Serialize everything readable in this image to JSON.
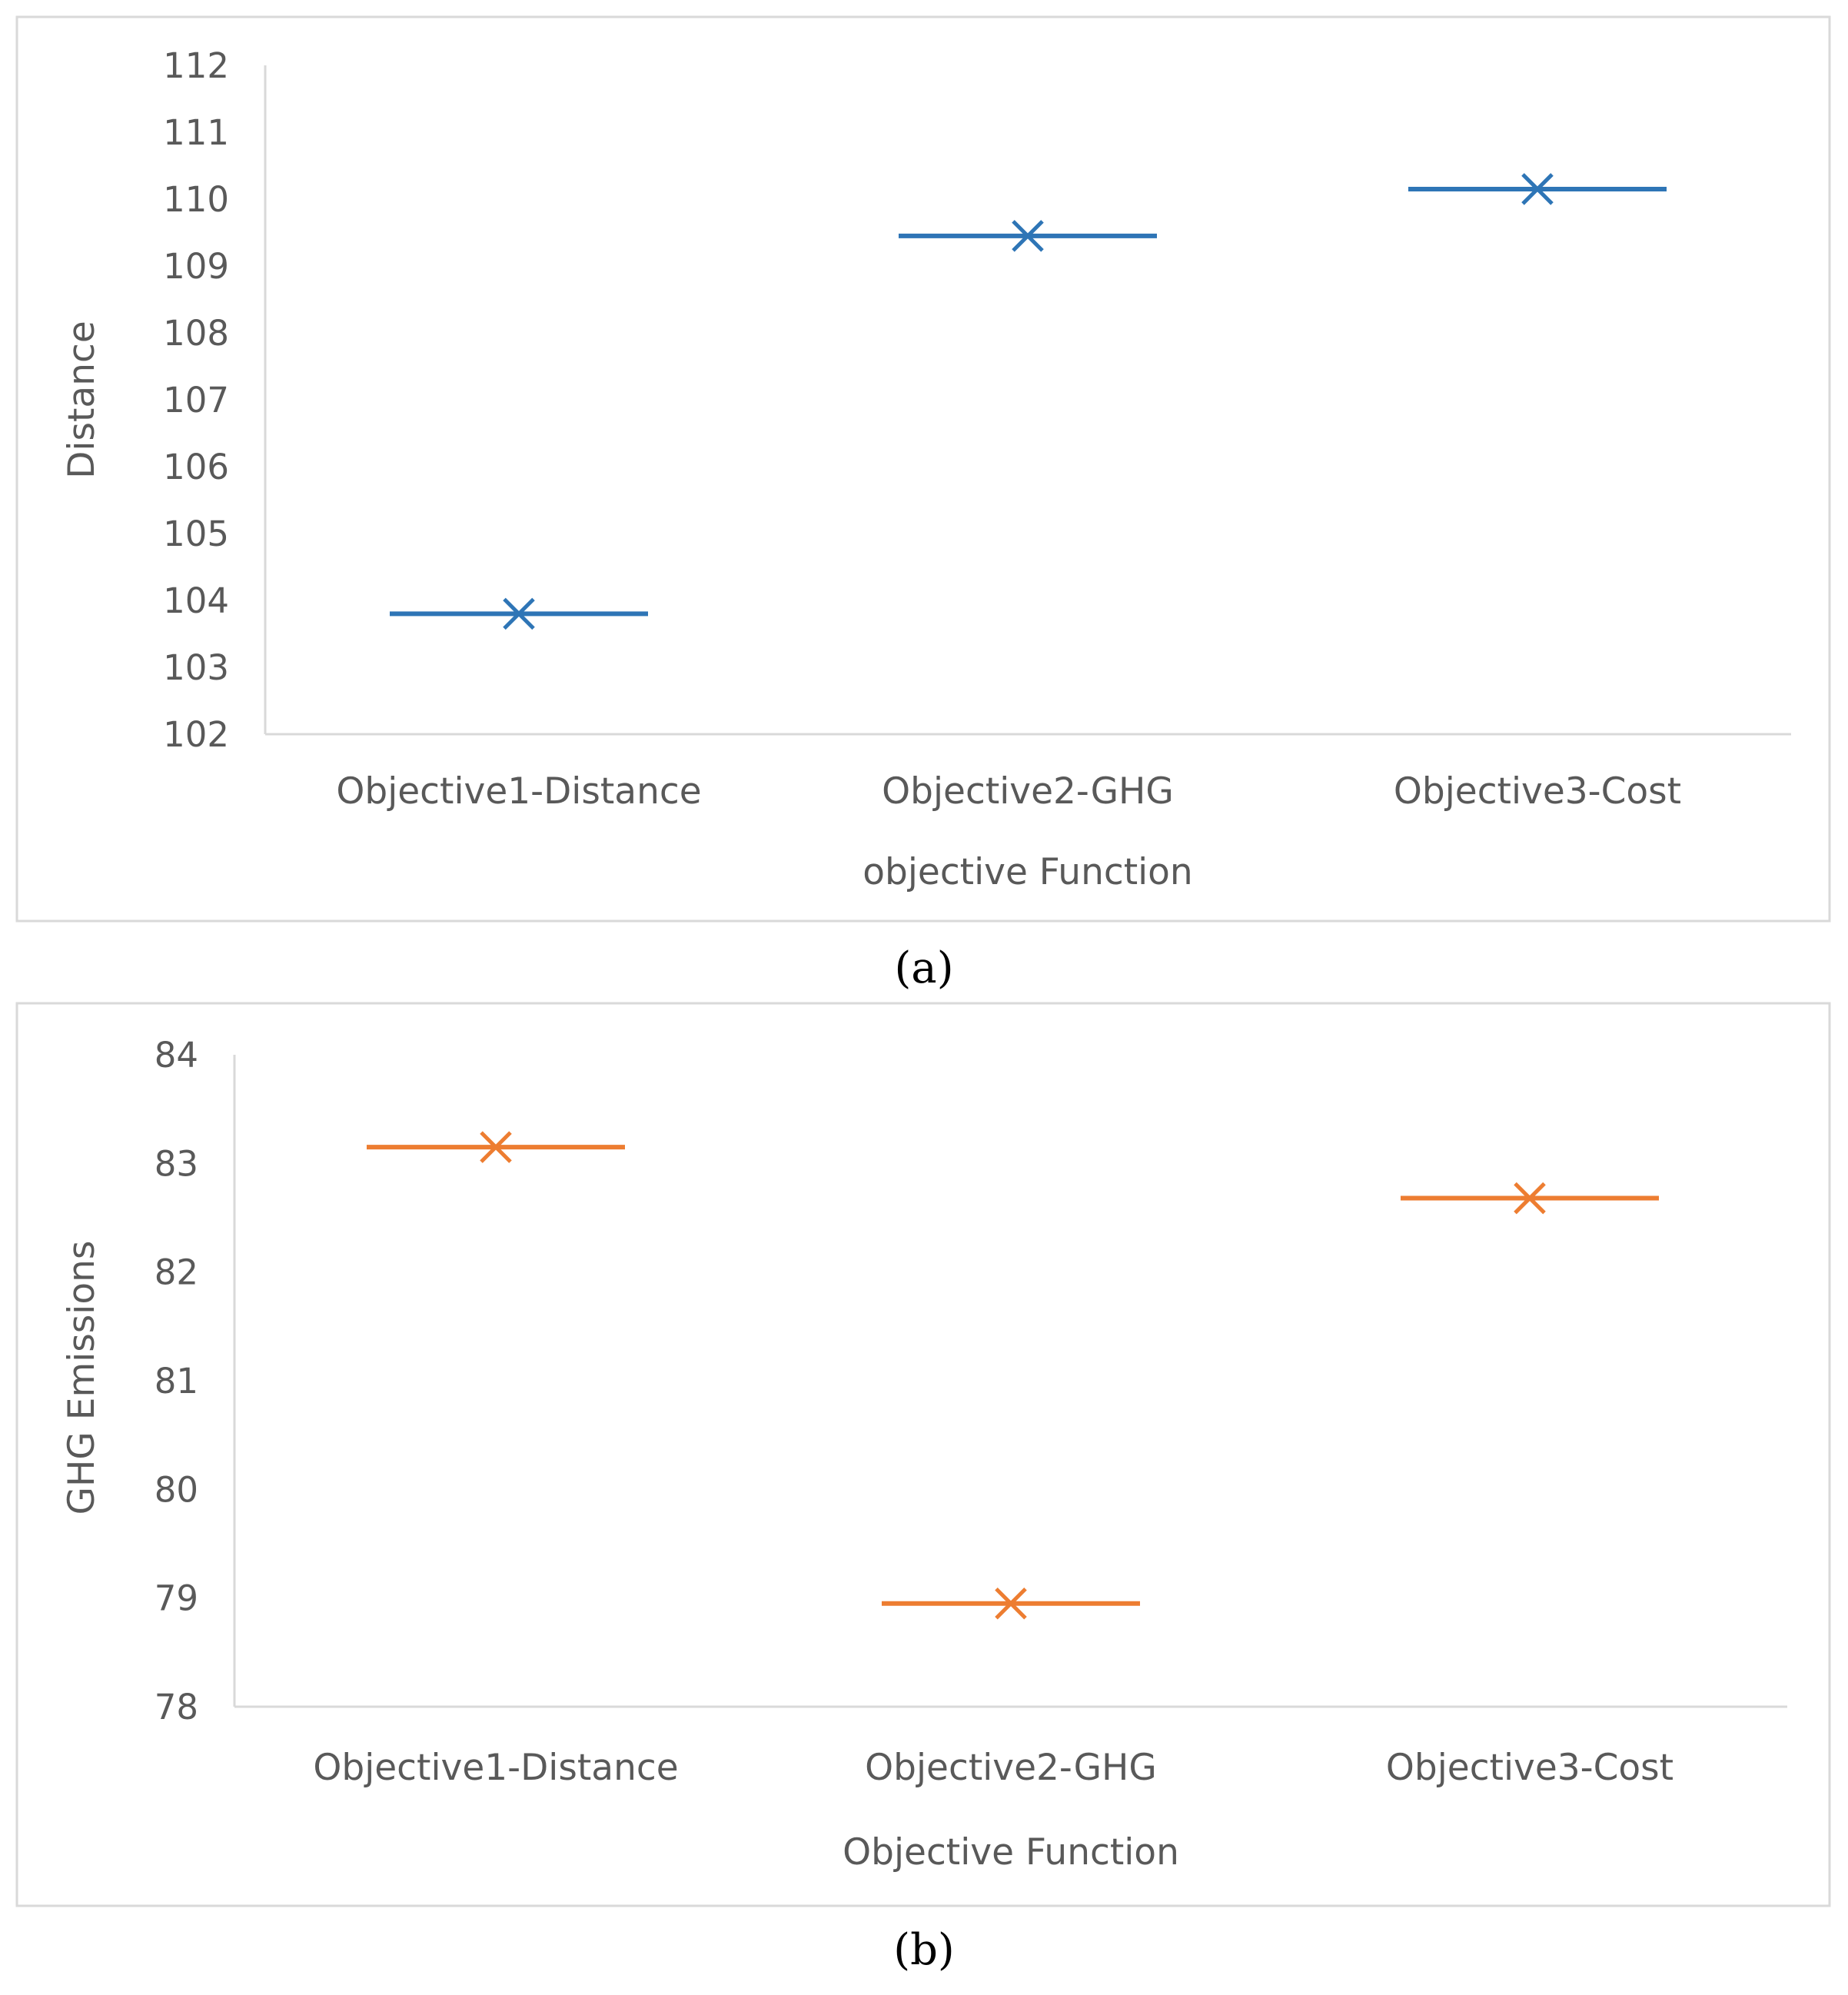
{
  "chart_data": [
    {
      "type": "line",
      "panel_label": "(a)",
      "title": "",
      "xlabel": "objective Function",
      "ylabel": "Distance",
      "categories": [
        "Objective1-Distance",
        "Objective2-GHG",
        "Objective3-Cost"
      ],
      "ylim": [
        102,
        112
      ],
      "yticks": [
        102,
        103,
        104,
        105,
        106,
        107,
        108,
        109,
        110,
        111,
        112
      ],
      "series": [
        {
          "name": "Distance",
          "values": [
            103.8,
            109.45,
            110.15
          ],
          "marker": "x",
          "color": "#2E75B6"
        }
      ],
      "grid": false,
      "legend": "none"
    },
    {
      "type": "line",
      "panel_label": "(b)",
      "title": "",
      "xlabel": "Objective Function",
      "ylabel": "GHG Emissions",
      "categories": [
        "Objective1-Distance",
        "Objective2-GHG",
        "Objective3-Cost"
      ],
      "ylim": [
        78,
        84
      ],
      "yticks": [
        78,
        79,
        80,
        81,
        82,
        83,
        84
      ],
      "series": [
        {
          "name": "GHG Emissions",
          "values": [
            83.15,
            78.95,
            82.68
          ],
          "marker": "x",
          "color": "#ED7D31"
        }
      ],
      "grid": false,
      "legend": "none"
    }
  ]
}
